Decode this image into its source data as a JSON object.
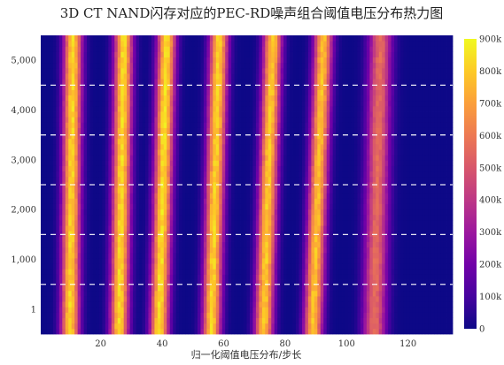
{
  "chart_data": {
    "type": "heatmap",
    "title": "3D CT NAND闪存对应的PEC-RD噪声组合阈值电压分布热力图",
    "xlabel": "归一化阈值电压分布/步长",
    "ylabel": "",
    "x_range": [
      1,
      134
    ],
    "y_range": [
      1,
      5500
    ],
    "x_ticks": [
      "20",
      "40",
      "60",
      "80",
      "100",
      "120"
    ],
    "y_ticks": [
      "1",
      "1,000",
      "2,000",
      "3,000",
      "4,000",
      "5,000"
    ],
    "colorbar": {
      "min": 0,
      "max": 900000,
      "tick_labels": [
        "0",
        "100k",
        "200k",
        "300k",
        "400k",
        "500k",
        "600k",
        "700k",
        "800k",
        "900k"
      ],
      "colorscale": "plasma"
    },
    "separator_y_values": [
      500,
      1500,
      2500,
      3500,
      4500
    ],
    "state_peaks": [
      {
        "state": 1,
        "center_at_bottom": 10,
        "center_at_top": 11,
        "peak_count": 820000
      },
      {
        "state": 2,
        "center_at_bottom": 26,
        "center_at_top": 27.5,
        "peak_count": 830000
      },
      {
        "state": 3,
        "center_at_bottom": 39,
        "center_at_top": 41.5,
        "peak_count": 840000
      },
      {
        "state": 4,
        "center_at_bottom": 56,
        "center_at_top": 58.5,
        "peak_count": 820000
      },
      {
        "state": 5,
        "center_at_bottom": 73,
        "center_at_top": 76,
        "peak_count": 800000
      },
      {
        "state": 6,
        "center_at_bottom": 89,
        "center_at_top": 92.5,
        "peak_count": 780000
      },
      {
        "state": 7,
        "center_at_bottom": 109,
        "center_at_top": 111,
        "peak_count": 560000
      }
    ]
  }
}
